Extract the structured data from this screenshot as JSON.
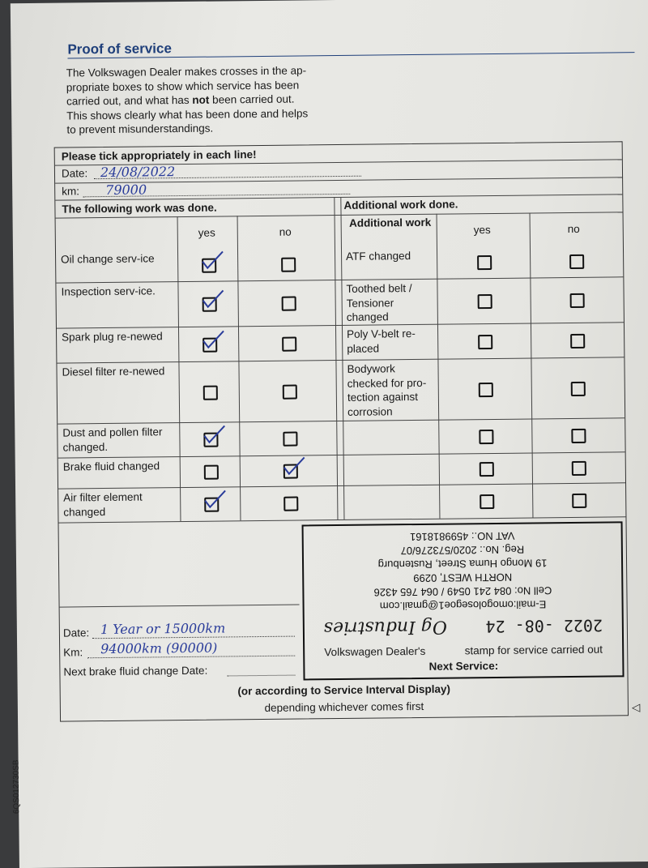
{
  "title": "Proof of service",
  "intro": [
    "The Volkswagen Dealer makes crosses in the ap-",
    "propriate boxes to show which service has been",
    "carried out, and what has ",
    "not",
    " been carried out.",
    "This shows clearly what has been done and helps",
    "to prevent misunderstandings."
  ],
  "form": {
    "instruction": "Please tick appropriately in each line!",
    "date_label": "Date:",
    "date_value": "24/08/2022",
    "km_label": "km:",
    "km_value": "79000",
    "left_heading": "The following work was done.",
    "right_heading": "Additional work done.",
    "right_col_header": "Additional work",
    "yes": "yes",
    "no": "no",
    "left_rows": [
      {
        "label": "Oil change serv-ice",
        "yes": true,
        "no": false
      },
      {
        "label": "Inspection serv-ice.",
        "yes": true,
        "no": false
      },
      {
        "label": "Spark plug re-newed",
        "yes": true,
        "no": false
      },
      {
        "label": "Diesel filter re-newed",
        "yes": false,
        "no": false
      },
      {
        "label": "Dust and pollen filter changed.",
        "yes": true,
        "no": false
      },
      {
        "label": "Brake fluid changed",
        "yes": false,
        "no": true
      },
      {
        "label": "Air filter element changed",
        "yes": true,
        "no": false
      }
    ],
    "right_rows": [
      {
        "label": "ATF changed",
        "yes": false,
        "no": false
      },
      {
        "label": "Toothed belt / Tensioner changed",
        "yes": false,
        "no": false
      },
      {
        "label": "Poly V-belt re-placed",
        "yes": false,
        "no": false
      },
      {
        "label": "Bodywork checked for pro-tection against corrosion",
        "yes": false,
        "no": false
      },
      {
        "label": "",
        "yes": false,
        "no": false
      },
      {
        "label": "",
        "yes": false,
        "no": false
      },
      {
        "label": "",
        "yes": false,
        "no": false
      }
    ],
    "stamp_caption_1": "Volkswagen Dealer's",
    "stamp_caption_2": "stamp for service carried out",
    "next_service": "Next Service:",
    "next_date_label": "Date:",
    "next_date_value": "1 Year or 15000km",
    "next_km_label": "Km:",
    "next_km_value": "94000km (90000)",
    "brake_label": "Next brake fluid change Date:",
    "note_1": "(or according to Service Interval Display)",
    "note_2": "depending whichever comes first"
  },
  "stamp": {
    "email": "E-mail:omogolosegoe1@gmail.com",
    "cell": "Cell No: 084 241 0549 / 064 765 4326",
    "region": "NORTH WEST, 0299",
    "address": "19 Mongo Huma Street, Rustenburg",
    "date": "2022 -08- 24",
    "reg": "Reg. No.: 2020/573276/07",
    "vat": "VAT NO.: 4599818161",
    "name": "Og Industries"
  },
  "side_code": "6QS012730SB"
}
